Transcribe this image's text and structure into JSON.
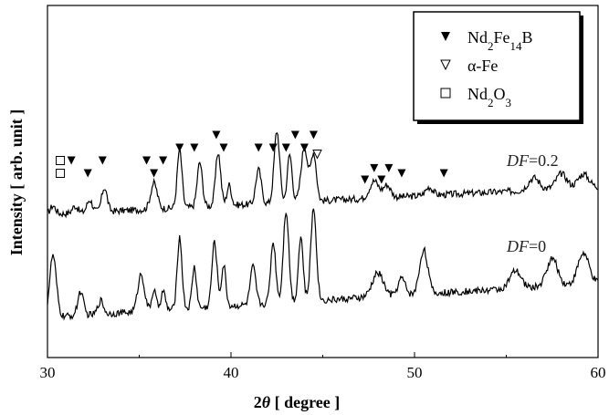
{
  "chart_data": {
    "type": "line",
    "xlabel": "2θ [ degree ]",
    "ylabel": "Intensity [ arb. unit ]",
    "xlim": [
      30,
      60
    ],
    "xticks": [
      "30",
      "40",
      "50",
      "60"
    ],
    "yticks": false,
    "grid": false,
    "legend_position": "top-right",
    "legend": [
      {
        "symbol": "filled-down-triangle",
        "label_html": "Nd<tspan baseline-shift=\"sub\" font-size=\"13\">2</tspan>Fe<tspan baseline-shift=\"sub\" font-size=\"13\">14</tspan>B",
        "label": "Nd2Fe14B"
      },
      {
        "symbol": "open-down-triangle",
        "label": "α-Fe"
      },
      {
        "symbol": "open-square",
        "label": "Nd2O3"
      }
    ],
    "series": [
      {
        "name": "DF=0.2",
        "name_parts": {
          "var": "DF",
          "value": "=0.2"
        },
        "offset": 1.0,
        "baseline": 0.0,
        "noise": 0.05,
        "peaks": [
          {
            "x": 30.3,
            "h": 0.12,
            "w": 0.15
          },
          {
            "x": 31.5,
            "h": 0.1,
            "w": 0.15
          },
          {
            "x": 32.3,
            "h": 0.18,
            "w": 0.15
          },
          {
            "x": 33.1,
            "h": 0.35,
            "w": 0.15
          },
          {
            "x": 35.8,
            "h": 0.38,
            "w": 0.18
          },
          {
            "x": 37.2,
            "h": 0.85,
            "w": 0.13
          },
          {
            "x": 38.3,
            "h": 0.65,
            "w": 0.14
          },
          {
            "x": 39.3,
            "h": 0.78,
            "w": 0.14
          },
          {
            "x": 39.9,
            "h": 0.3,
            "w": 0.12
          },
          {
            "x": 41.5,
            "h": 0.5,
            "w": 0.15
          },
          {
            "x": 42.5,
            "h": 1.05,
            "w": 0.15
          },
          {
            "x": 43.2,
            "h": 0.7,
            "w": 0.13
          },
          {
            "x": 44.0,
            "h": 0.8,
            "w": 0.18
          },
          {
            "x": 44.5,
            "h": 0.7,
            "w": 0.15
          },
          {
            "x": 47.8,
            "h": 0.25,
            "w": 0.25
          },
          {
            "x": 48.5,
            "h": 0.18,
            "w": 0.2
          },
          {
            "x": 50.8,
            "h": 0.12,
            "w": 0.2
          },
          {
            "x": 56.5,
            "h": 0.18,
            "w": 0.3
          },
          {
            "x": 58.0,
            "h": 0.22,
            "w": 0.3
          },
          {
            "x": 59.2,
            "h": 0.2,
            "w": 0.3
          }
        ],
        "background": {
          "start": 0.0,
          "slope": 0.4
        }
      },
      {
        "name": "DF=0",
        "name_parts": {
          "var": "DF",
          "value": "=0"
        },
        "offset": 0.0,
        "baseline": 0.0,
        "noise": 0.05,
        "peaks": [
          {
            "x": 30.3,
            "h": 0.9,
            "w": 0.18
          },
          {
            "x": 31.8,
            "h": 0.35,
            "w": 0.15
          },
          {
            "x": 32.9,
            "h": 0.2,
            "w": 0.15
          },
          {
            "x": 35.1,
            "h": 0.55,
            "w": 0.18
          },
          {
            "x": 35.8,
            "h": 0.3,
            "w": 0.12
          },
          {
            "x": 36.3,
            "h": 0.28,
            "w": 0.12
          },
          {
            "x": 37.2,
            "h": 1.05,
            "w": 0.13
          },
          {
            "x": 38.0,
            "h": 0.6,
            "w": 0.12
          },
          {
            "x": 39.1,
            "h": 0.95,
            "w": 0.14
          },
          {
            "x": 39.6,
            "h": 0.6,
            "w": 0.12
          },
          {
            "x": 41.2,
            "h": 0.55,
            "w": 0.15
          },
          {
            "x": 42.3,
            "h": 0.9,
            "w": 0.14
          },
          {
            "x": 43.0,
            "h": 1.35,
            "w": 0.15
          },
          {
            "x": 43.8,
            "h": 0.95,
            "w": 0.13
          },
          {
            "x": 44.5,
            "h": 1.35,
            "w": 0.15
          },
          {
            "x": 48.0,
            "h": 0.35,
            "w": 0.3
          },
          {
            "x": 49.3,
            "h": 0.25,
            "w": 0.2
          },
          {
            "x": 50.5,
            "h": 0.65,
            "w": 0.22
          },
          {
            "x": 55.5,
            "h": 0.25,
            "w": 0.3
          },
          {
            "x": 57.5,
            "h": 0.4,
            "w": 0.3
          },
          {
            "x": 59.2,
            "h": 0.45,
            "w": 0.3
          }
        ],
        "background": {
          "start": 0.0,
          "slope": 0.5
        }
      }
    ],
    "markers": [
      {
        "phase": "Nd2O3",
        "symbol": "open-square",
        "x": 30.7,
        "row": 0
      },
      {
        "phase": "Nd2O3",
        "symbol": "open-square",
        "x": 30.7,
        "row": 1
      },
      {
        "phase": "Nd2Fe14B",
        "symbol": "filled-down-triangle",
        "x": 31.3,
        "row": 1
      },
      {
        "phase": "Nd2Fe14B",
        "symbol": "filled-down-triangle",
        "x": 32.2,
        "row": 0
      },
      {
        "phase": "Nd2Fe14B",
        "symbol": "filled-down-triangle",
        "x": 33.0,
        "row": 1
      },
      {
        "phase": "Nd2Fe14B",
        "symbol": "filled-down-triangle",
        "x": 35.4,
        "row": 1
      },
      {
        "phase": "Nd2Fe14B",
        "symbol": "filled-down-triangle",
        "x": 35.8,
        "row": 0
      },
      {
        "phase": "Nd2Fe14B",
        "symbol": "filled-down-triangle",
        "x": 36.3,
        "row": 1
      },
      {
        "phase": "Nd2Fe14B",
        "symbol": "filled-down-triangle",
        "x": 37.2,
        "row": 2
      },
      {
        "phase": "Nd2Fe14B",
        "symbol": "filled-down-triangle",
        "x": 38.0,
        "row": 2
      },
      {
        "phase": "Nd2Fe14B",
        "symbol": "filled-down-triangle",
        "x": 39.2,
        "row": 3
      },
      {
        "phase": "Nd2Fe14B",
        "symbol": "filled-down-triangle",
        "x": 39.6,
        "row": 2
      },
      {
        "phase": "Nd2Fe14B",
        "symbol": "filled-down-triangle",
        "x": 41.5,
        "row": 2
      },
      {
        "phase": "Nd2Fe14B",
        "symbol": "filled-down-triangle",
        "x": 42.3,
        "row": 2
      },
      {
        "phase": "Nd2Fe14B",
        "symbol": "filled-down-triangle",
        "x": 43.0,
        "row": 2
      },
      {
        "phase": "Nd2Fe14B",
        "symbol": "filled-down-triangle",
        "x": 43.5,
        "row": 3
      },
      {
        "phase": "Nd2Fe14B",
        "symbol": "filled-down-triangle",
        "x": 44.0,
        "row": 2
      },
      {
        "phase": "Nd2Fe14B",
        "symbol": "filled-down-triangle",
        "x": 44.5,
        "row": 3
      },
      {
        "phase": "α-Fe",
        "symbol": "open-down-triangle",
        "x": 44.7,
        "row": 1.5
      },
      {
        "phase": "Nd2Fe14B",
        "symbol": "filled-down-triangle",
        "x": 47.3,
        "row": -0.5
      },
      {
        "phase": "Nd2Fe14B",
        "symbol": "filled-down-triangle",
        "x": 47.8,
        "row": 0.4
      },
      {
        "phase": "Nd2Fe14B",
        "symbol": "filled-down-triangle",
        "x": 48.2,
        "row": -0.5
      },
      {
        "phase": "Nd2Fe14B",
        "symbol": "filled-down-triangle",
        "x": 48.6,
        "row": 0.4
      },
      {
        "phase": "Nd2Fe14B",
        "symbol": "filled-down-triangle",
        "x": 49.3,
        "row": 0.0
      },
      {
        "phase": "Nd2Fe14B",
        "symbol": "filled-down-triangle",
        "x": 51.6,
        "row": 0.0
      }
    ],
    "colors": {
      "line": "#000000",
      "axis": "#000000",
      "label": "#333333"
    }
  }
}
